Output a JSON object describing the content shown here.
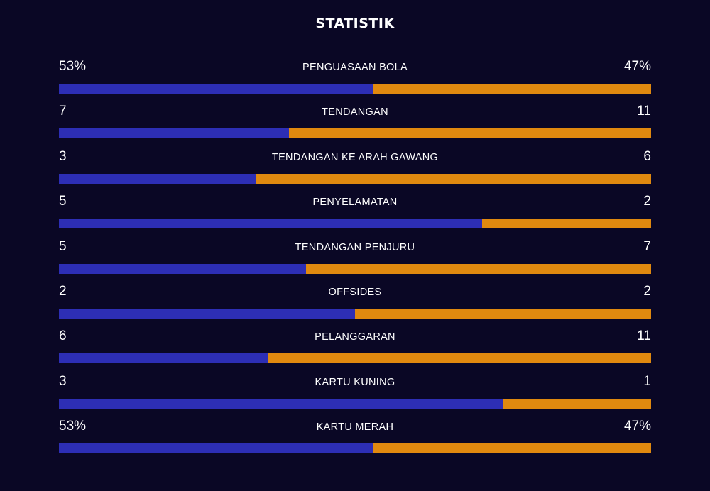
{
  "title": "STATISTIK",
  "colors": {
    "home": "#2d2eb5",
    "away": "#e0890f",
    "background": "#0a0725"
  },
  "chart_data": {
    "type": "bar",
    "title": "STATISTIK",
    "categories": [
      "PENGUASAAN BOLA",
      "TENDANGAN",
      "TENDANGAN KE ARAH GAWANG",
      "PENYELAMATAN",
      "TENDANGAN PENJURU",
      "OFFSIDES",
      "PELANGGARAN",
      "KARTU KUNING",
      "KARTU MERAH"
    ],
    "series": [
      {
        "values": [
          53,
          7,
          3,
          5,
          5,
          2,
          6,
          3,
          53
        ]
      },
      {
        "values": [
          47,
          11,
          6,
          2,
          7,
          2,
          11,
          1,
          47
        ]
      }
    ],
    "display": {
      "home": [
        "53%",
        "7",
        "3",
        "5",
        "5",
        "2",
        "6",
        "3",
        "53%"
      ],
      "away": [
        "47%",
        "11",
        "6",
        "2",
        "7",
        "2",
        "11",
        "1",
        "47%"
      ]
    }
  }
}
